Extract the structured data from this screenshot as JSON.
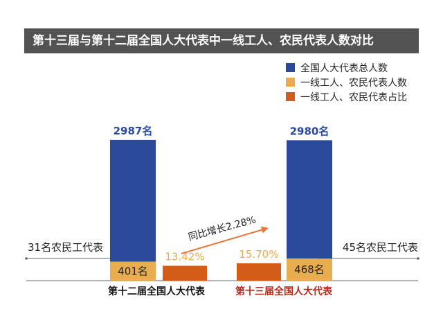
{
  "banner": {
    "title": "第十三届与第十二届全国人大代表中一线工人、农民代表人数对比"
  },
  "colors": {
    "total": "#2b4a9c",
    "workers": "#e7ad4e",
    "share": "#d35c18",
    "banner": "#535353",
    "arrow": "#e8783a"
  },
  "chart_data": {
    "type": "bar",
    "categories": [
      "第十二届全国人大代表",
      "第十三届全国人大代表"
    ],
    "series": [
      {
        "name": "全国人大代表总人数",
        "values": [
          2987,
          2980
        ],
        "labels": [
          "2987名",
          "2980名"
        ]
      },
      {
        "name": "一线工人、农民代表人数",
        "values": [
          401,
          468
        ],
        "labels": [
          "401名",
          "468名"
        ]
      },
      {
        "name": "一线工人、农民代表占比",
        "values": [
          13.42,
          15.7
        ],
        "labels": [
          "13.42%",
          "15.70%"
        ]
      }
    ],
    "side_annotations": [
      "31名农民工代表",
      "45名农民工代表"
    ],
    "growth_annotation": "同比增长2.28%",
    "legend_position": "top-right",
    "category_colors": [
      "#111111",
      "#b52a1c"
    ]
  }
}
